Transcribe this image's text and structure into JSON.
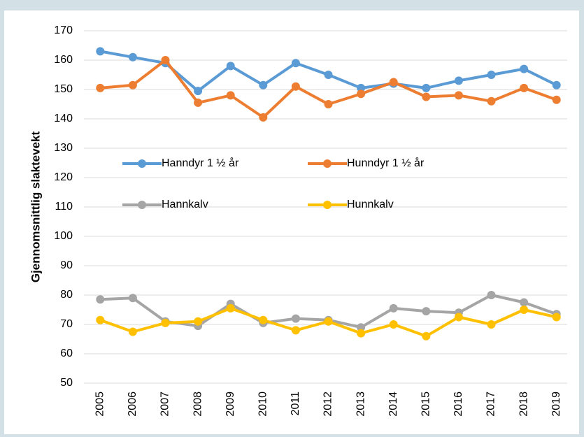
{
  "chart_data": {
    "type": "line",
    "y_label": "Gjennomsnittlig slaktevekt",
    "categories": [
      "2005",
      "2006",
      "2007",
      "2008",
      "2009",
      "2010",
      "2011",
      "2012",
      "2013",
      "2014",
      "2015",
      "2016",
      "2017",
      "2018",
      "2019"
    ],
    "series": [
      {
        "name": "Hanndyr 1 ½ år",
        "color": "#5b9bd5",
        "values": [
          163,
          161,
          159,
          149.5,
          158,
          151.5,
          159,
          155,
          150.5,
          152,
          150.5,
          153,
          155,
          157,
          151.5
        ]
      },
      {
        "name": "Hunndyr 1 ½ år",
        "color": "#ed7d31",
        "values": [
          150.5,
          151.5,
          160,
          145.5,
          148,
          140.5,
          151,
          145,
          148.5,
          152.5,
          147.5,
          148,
          146,
          150.5,
          146.5
        ]
      },
      {
        "name": "Hannkalv",
        "color": "#a5a5a5",
        "values": [
          78.5,
          79,
          71,
          69.5,
          77,
          70.5,
          72,
          71.5,
          69,
          75.5,
          74.5,
          74,
          80,
          77.5,
          73.5
        ]
      },
      {
        "name": "Hunnkalv",
        "color": "#ffc000",
        "values": [
          71.5,
          67.5,
          70.5,
          71,
          75.5,
          71.5,
          68,
          71,
          67,
          70,
          66,
          72.5,
          70,
          75,
          72.5
        ]
      }
    ],
    "ylim": [
      50,
      170
    ],
    "yticks": [
      50,
      60,
      70,
      80,
      90,
      100,
      110,
      120,
      130,
      140,
      150,
      160,
      170
    ],
    "grid": true
  }
}
